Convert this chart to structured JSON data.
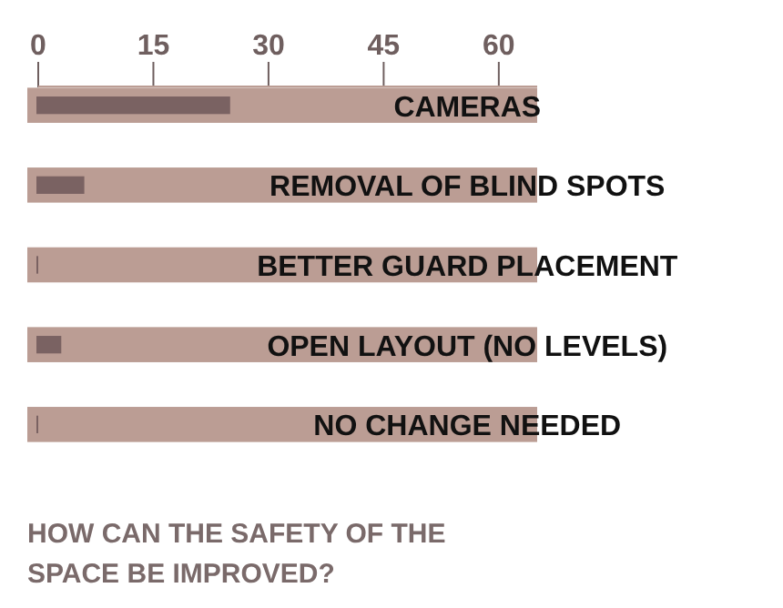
{
  "chart_data": {
    "type": "bar",
    "orientation": "horizontal",
    "title": "HOW CAN THE SAFETY OF THE SPACE BE IMPROVED?",
    "categories": [
      "CAMERAS",
      "REMOVAL OF BLIND SPOTS",
      "BETTER GUARD PLACEMENT",
      "OPEN LAYOUT (NO LEVELS)",
      "NO CHANGE NEEDED"
    ],
    "series": [
      {
        "color": "#bb9d94",
        "values": [
          65,
          65,
          65,
          65,
          65
        ]
      },
      {
        "color": "#7a6262",
        "values": [
          25,
          6,
          0,
          3,
          0
        ]
      }
    ],
    "xlim": [
      0,
      65
    ],
    "xticks": [
      0,
      15,
      30,
      45,
      60
    ],
    "grid": false
  }
}
